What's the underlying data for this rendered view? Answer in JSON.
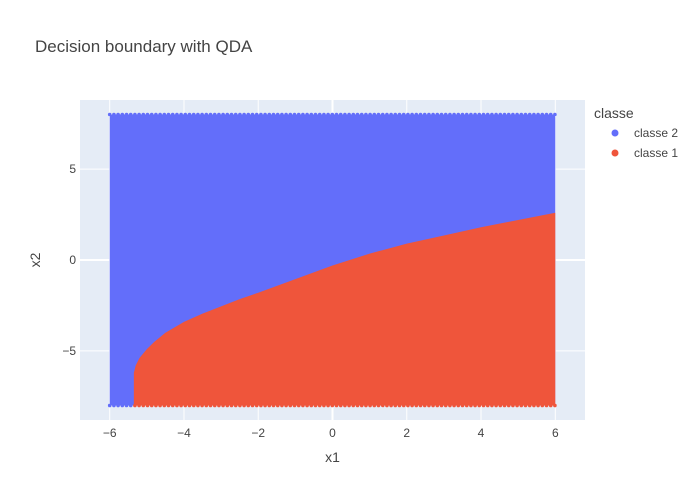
{
  "chart_data": {
    "type": "scatter",
    "title": "Decision boundary with QDA",
    "xlabel": "x1",
    "ylabel": "x2",
    "xlim": [
      -6.8,
      6.8
    ],
    "ylim": [
      -8.8,
      8.8
    ],
    "x_ticks": [
      -6,
      -4,
      -2,
      0,
      2,
      4,
      6
    ],
    "x_tick_labels": [
      "−6",
      "−4",
      "−2",
      "0",
      "2",
      "4",
      "6"
    ],
    "y_ticks": [
      -5,
      0,
      5
    ],
    "y_tick_labels": [
      "−5",
      "0",
      "5"
    ],
    "grid": true,
    "legend": {
      "title": "classe",
      "placement": "right"
    },
    "series": [
      {
        "name": "classe 2",
        "color": "#636efa",
        "region": {
          "x_range": [
            -6,
            6
          ],
          "y_range": [
            -8,
            8
          ],
          "description_boundary": "above curve"
        }
      },
      {
        "name": "classe 1",
        "color": "#ef553b",
        "region": {
          "x_range": [
            -5.35,
            6
          ],
          "y_range": [
            -8,
            2.6
          ]
        }
      }
    ],
    "boundary": {
      "x": [
        -5.35,
        -5.3,
        -5.2,
        -5.0,
        -4.8,
        -4.5,
        -4.0,
        -3.5,
        -3.0,
        -2.5,
        -2.0,
        -1.0,
        0.0,
        1.0,
        2.0,
        3.0,
        4.0,
        5.0,
        6.0
      ],
      "y": [
        -6.2,
        -5.8,
        -5.4,
        -4.9,
        -4.5,
        -4.0,
        -3.4,
        -2.95,
        -2.55,
        -2.15,
        -1.8,
        -1.05,
        -0.3,
        0.35,
        0.9,
        1.35,
        1.8,
        2.2,
        2.6
      ]
    },
    "grid_domain": {
      "xmin": -6,
      "xmax": 6,
      "ymin": -8,
      "ymax": 8
    }
  }
}
